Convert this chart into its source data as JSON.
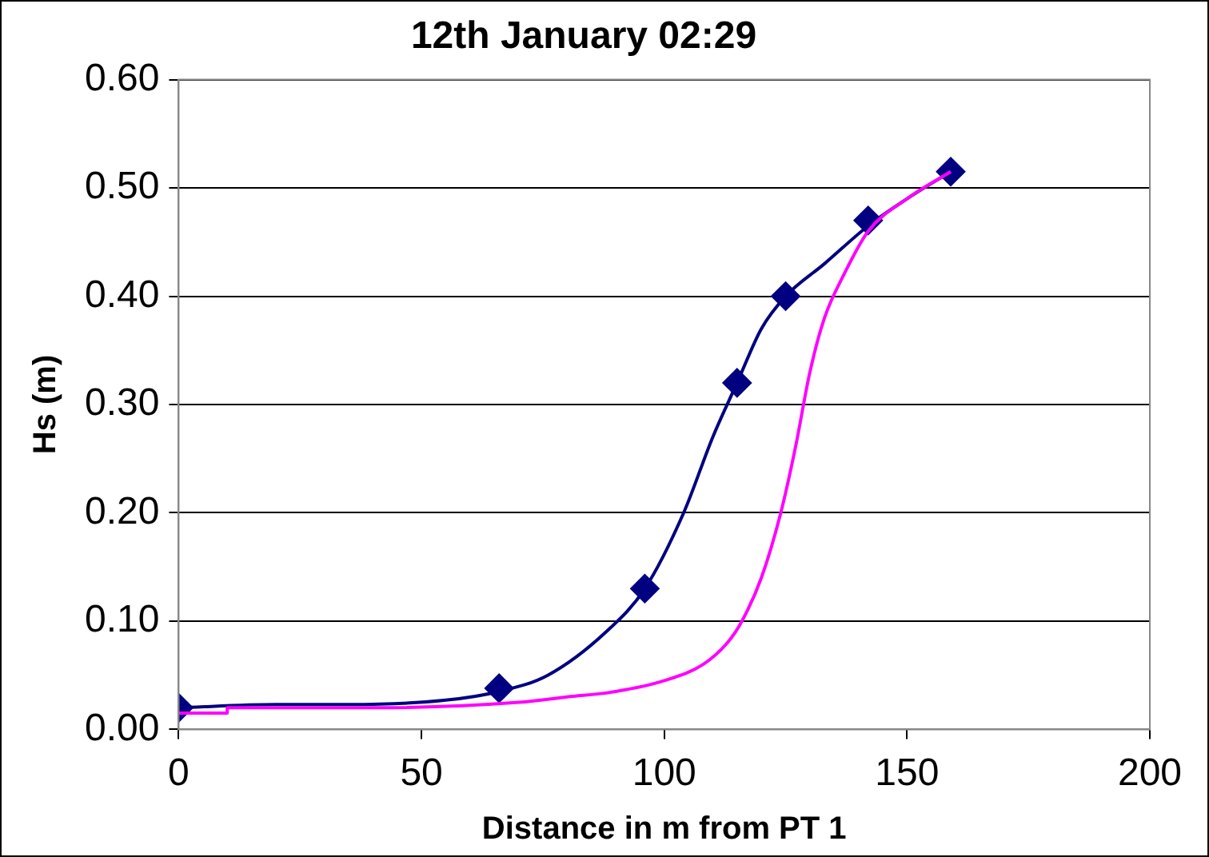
{
  "chart_data": {
    "type": "line",
    "title": "12th January 02:29",
    "xlabel": "Distance in m from PT 1",
    "ylabel": "Hs (m)",
    "xlim": [
      0,
      200
    ],
    "xticks": [
      0,
      50,
      100,
      150,
      200
    ],
    "ylim": [
      0,
      0.6
    ],
    "yticks": [
      {
        "value": 0,
        "label": "0.00"
      },
      {
        "value": 0.1,
        "label": "0.10"
      },
      {
        "value": 0.2,
        "label": "0.20"
      },
      {
        "value": 0.3,
        "label": "0.30"
      },
      {
        "value": 0.4,
        "label": "0.40"
      },
      {
        "value": 0.5,
        "label": "0.50"
      },
      {
        "value": 0.6,
        "label": "0.60"
      }
    ],
    "grid": "y",
    "legend": false,
    "line_style": "solid",
    "series": [
      {
        "color": "#ff00ff",
        "marker": "none",
        "x": [
          0,
          10,
          10,
          40,
          70,
          80,
          90,
          100,
          108,
          113,
          116,
          120,
          124,
          127,
          130,
          133,
          137,
          142,
          150,
          159
        ],
        "values": [
          0.015,
          0.015,
          0.02,
          0.02,
          0.025,
          0.03,
          0.035,
          0.045,
          0.06,
          0.08,
          0.1,
          0.14,
          0.2,
          0.26,
          0.33,
          0.38,
          0.42,
          0.46,
          0.49,
          0.515
        ]
      },
      {
        "color": "#000080",
        "marker": "none",
        "x": [
          0,
          20,
          35,
          55,
          66,
          76,
          88,
          96,
          104,
          110,
          115,
          120,
          125,
          133,
          142,
          150,
          159
        ],
        "values": [
          0.02,
          0.023,
          0.023,
          0.027,
          0.035,
          0.05,
          0.09,
          0.13,
          0.2,
          0.27,
          0.32,
          0.37,
          0.4,
          0.43,
          0.465,
          0.49,
          0.515
        ]
      },
      {
        "type": "scatter",
        "color": "#000080",
        "marker": "diamond",
        "x": [
          0,
          66,
          96,
          115,
          125,
          142,
          159
        ],
        "values": [
          0.02,
          0.038,
          0.13,
          0.32,
          0.4,
          0.47,
          0.515
        ]
      }
    ]
  }
}
